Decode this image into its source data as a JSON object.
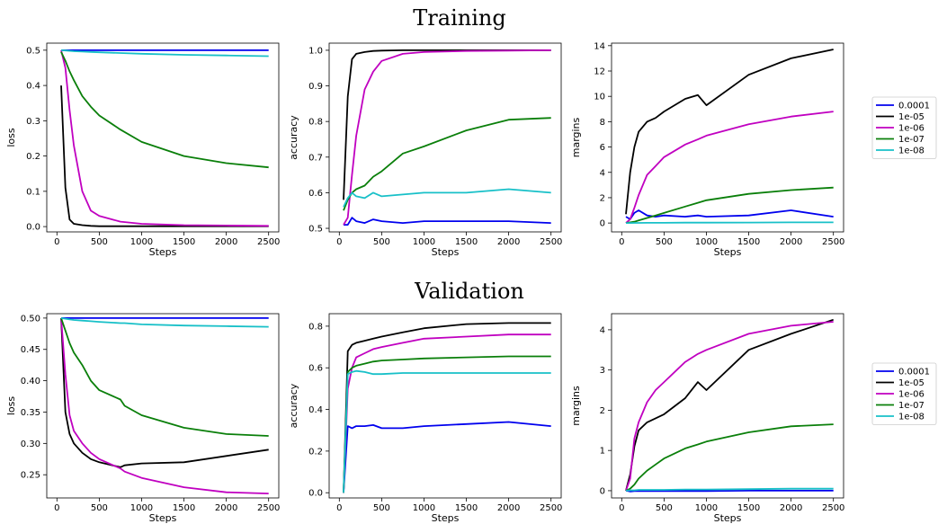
{
  "sections": [
    {
      "title": "Training"
    },
    {
      "title": "Validation"
    }
  ],
  "legend": {
    "entries": [
      {
        "label": "0.0001",
        "color": "#0000ee"
      },
      {
        "label": "1e-05",
        "color": "#000000"
      },
      {
        "label": "1e-06",
        "color": "#c000c0"
      },
      {
        "label": "1e-07",
        "color": "#0a7f0a"
      },
      {
        "label": "1e-08",
        "color": "#18c0c8"
      }
    ]
  },
  "chart_data": [
    {
      "type": "line",
      "section": "Training",
      "xlabel": "Steps",
      "ylabel": "loss",
      "xlim": [
        -120,
        2620
      ],
      "ylim": [
        -0.015,
        0.52
      ],
      "xticks": [
        0,
        500,
        1000,
        1500,
        2000,
        2500
      ],
      "yticks": [
        0.0,
        0.1,
        0.2,
        0.3,
        0.4,
        0.5
      ],
      "yticklabels": [
        "0.0",
        "0.1",
        "0.2",
        "0.3",
        "0.4",
        "0.5"
      ],
      "x": [
        50,
        100,
        150,
        200,
        300,
        400,
        500,
        750,
        1000,
        1500,
        2000,
        2500
      ],
      "series": [
        {
          "name": "0.0001",
          "values": [
            0.5,
            0.5,
            0.5,
            0.5,
            0.5,
            0.5,
            0.5,
            0.5,
            0.5,
            0.5,
            0.5,
            0.5
          ]
        },
        {
          "name": "1e-05",
          "values": [
            0.4,
            0.11,
            0.02,
            0.008,
            0.004,
            0.002,
            0.001,
            0.001,
            0.001,
            0.001,
            0.001,
            0.001
          ]
        },
        {
          "name": "1e-06",
          "values": [
            0.5,
            0.45,
            0.33,
            0.23,
            0.1,
            0.045,
            0.03,
            0.014,
            0.008,
            0.004,
            0.003,
            0.002
          ]
        },
        {
          "name": "1e-07",
          "values": [
            0.495,
            0.47,
            0.44,
            0.415,
            0.37,
            0.34,
            0.315,
            0.275,
            0.24,
            0.2,
            0.18,
            0.168
          ]
        },
        {
          "name": "1e-08",
          "values": [
            0.5,
            0.499,
            0.498,
            0.497,
            0.496,
            0.495,
            0.494,
            0.492,
            0.49,
            0.487,
            0.485,
            0.483
          ]
        }
      ]
    },
    {
      "type": "line",
      "section": "Training",
      "xlabel": "Steps",
      "ylabel": "accuracy",
      "xlim": [
        -120,
        2620
      ],
      "ylim": [
        0.49,
        1.02
      ],
      "xticks": [
        0,
        500,
        1000,
        1500,
        2000,
        2500
      ],
      "yticks": [
        0.5,
        0.6,
        0.7,
        0.8,
        0.9,
        1.0
      ],
      "yticklabels": [
        "0.5",
        "0.6",
        "0.7",
        "0.8",
        "0.9",
        "1.0"
      ],
      "x": [
        50,
        100,
        150,
        200,
        300,
        400,
        500,
        750,
        1000,
        1500,
        2000,
        2500
      ],
      "series": [
        {
          "name": "0.0001",
          "values": [
            0.51,
            0.51,
            0.53,
            0.52,
            0.515,
            0.525,
            0.52,
            0.515,
            0.52,
            0.52,
            0.52,
            0.515
          ]
        },
        {
          "name": "1e-05",
          "values": [
            0.58,
            0.87,
            0.975,
            0.99,
            0.995,
            0.998,
            0.999,
            1.0,
            1.0,
            1.0,
            1.0,
            1.0
          ]
        },
        {
          "name": "1e-06",
          "values": [
            0.51,
            0.53,
            0.65,
            0.76,
            0.89,
            0.94,
            0.97,
            0.99,
            0.995,
            0.998,
            0.999,
            1.0
          ]
        },
        {
          "name": "1e-07",
          "values": [
            0.55,
            0.58,
            0.6,
            0.61,
            0.62,
            0.645,
            0.66,
            0.71,
            0.73,
            0.775,
            0.805,
            0.81
          ]
        },
        {
          "name": "1e-08",
          "values": [
            0.56,
            0.585,
            0.6,
            0.59,
            0.585,
            0.6,
            0.59,
            0.595,
            0.6,
            0.6,
            0.61,
            0.6
          ]
        }
      ]
    },
    {
      "type": "line",
      "section": "Training",
      "xlabel": "Steps",
      "ylabel": "margins",
      "xlim": [
        -120,
        2620
      ],
      "ylim": [
        -0.7,
        14.2
      ],
      "xticks": [
        0,
        500,
        1000,
        1500,
        2000,
        2500
      ],
      "yticks": [
        0,
        2,
        4,
        6,
        8,
        10,
        12,
        14
      ],
      "yticklabels": [
        "0",
        "2",
        "4",
        "6",
        "8",
        "10",
        "12",
        "14"
      ],
      "x": [
        50,
        100,
        150,
        200,
        300,
        400,
        500,
        750,
        900,
        1000,
        1500,
        2000,
        2500
      ],
      "series": [
        {
          "name": "0.0001",
          "values": [
            0.5,
            0.3,
            0.8,
            1.0,
            0.6,
            0.5,
            0.6,
            0.5,
            0.6,
            0.5,
            0.6,
            1.0,
            0.5
          ]
        },
        {
          "name": "1e-05",
          "values": [
            0.7,
            4.0,
            6.0,
            7.2,
            8.0,
            8.3,
            8.8,
            9.8,
            10.1,
            9.3,
            11.7,
            13.0,
            13.7
          ]
        },
        {
          "name": "1e-06",
          "values": [
            0.0,
            0.3,
            1.2,
            2.2,
            3.8,
            4.5,
            5.2,
            6.2,
            6.6,
            6.9,
            7.8,
            8.4,
            8.8
          ]
        },
        {
          "name": "1e-07",
          "values": [
            0.0,
            0.05,
            0.1,
            0.2,
            0.4,
            0.6,
            0.8,
            1.3,
            1.6,
            1.8,
            2.3,
            2.6,
            2.8
          ]
        },
        {
          "name": "1e-08",
          "values": [
            0.0,
            0.0,
            0.01,
            0.01,
            0.02,
            0.02,
            0.02,
            0.03,
            0.03,
            0.03,
            0.04,
            0.05,
            0.05
          ]
        }
      ]
    },
    {
      "type": "line",
      "section": "Validation",
      "xlabel": "Steps",
      "ylabel": "loss",
      "xlim": [
        -120,
        2620
      ],
      "ylim": [
        0.213,
        0.507
      ],
      "xticks": [
        0,
        500,
        1000,
        1500,
        2000,
        2500
      ],
      "yticks": [
        0.25,
        0.3,
        0.35,
        0.4,
        0.45,
        0.5
      ],
      "yticklabels": [
        "0.25",
        "0.30",
        "0.35",
        "0.40",
        "0.45",
        "0.50"
      ],
      "x": [
        50,
        100,
        150,
        200,
        300,
        400,
        500,
        750,
        800,
        1000,
        1500,
        2000,
        2500
      ],
      "series": [
        {
          "name": "0.0001",
          "values": [
            0.5,
            0.5,
            0.5,
            0.5,
            0.5,
            0.5,
            0.5,
            0.5,
            0.5,
            0.5,
            0.5,
            0.5,
            0.5
          ]
        },
        {
          "name": "1e-05",
          "values": [
            0.5,
            0.35,
            0.315,
            0.3,
            0.285,
            0.275,
            0.27,
            0.262,
            0.265,
            0.268,
            0.27,
            0.28,
            0.29
          ]
        },
        {
          "name": "1e-06",
          "values": [
            0.5,
            0.41,
            0.345,
            0.32,
            0.3,
            0.285,
            0.275,
            0.26,
            0.255,
            0.245,
            0.23,
            0.222,
            0.22
          ]
        },
        {
          "name": "1e-07",
          "values": [
            0.5,
            0.48,
            0.46,
            0.445,
            0.425,
            0.4,
            0.385,
            0.37,
            0.36,
            0.345,
            0.325,
            0.315,
            0.312
          ]
        },
        {
          "name": "1e-08",
          "values": [
            0.5,
            0.499,
            0.498,
            0.497,
            0.496,
            0.495,
            0.494,
            0.492,
            0.492,
            0.49,
            0.488,
            0.487,
            0.486
          ]
        }
      ]
    },
    {
      "type": "line",
      "section": "Validation",
      "xlabel": "Steps",
      "ylabel": "accuracy",
      "xlim": [
        -120,
        2620
      ],
      "ylim": [
        -0.025,
        0.86
      ],
      "xticks": [
        0,
        500,
        1000,
        1500,
        2000,
        2500
      ],
      "yticks": [
        0.0,
        0.2,
        0.4,
        0.6,
        0.8
      ],
      "yticklabels": [
        "0.0",
        "0.2",
        "0.4",
        "0.6",
        "0.8"
      ],
      "x": [
        50,
        100,
        150,
        200,
        300,
        400,
        500,
        750,
        1000,
        1500,
        2000,
        2500
      ],
      "series": [
        {
          "name": "0.0001",
          "values": [
            0.0,
            0.32,
            0.31,
            0.32,
            0.32,
            0.325,
            0.31,
            0.31,
            0.32,
            0.33,
            0.34,
            0.32
          ]
        },
        {
          "name": "1e-05",
          "values": [
            0.0,
            0.68,
            0.71,
            0.72,
            0.73,
            0.74,
            0.75,
            0.77,
            0.79,
            0.81,
            0.815,
            0.815
          ]
        },
        {
          "name": "1e-06",
          "values": [
            0.0,
            0.5,
            0.6,
            0.65,
            0.67,
            0.69,
            0.7,
            0.72,
            0.74,
            0.75,
            0.76,
            0.76
          ]
        },
        {
          "name": "1e-07",
          "values": [
            0.0,
            0.58,
            0.6,
            0.61,
            0.62,
            0.63,
            0.635,
            0.64,
            0.645,
            0.65,
            0.655,
            0.655
          ]
        },
        {
          "name": "1e-08",
          "values": [
            0.0,
            0.57,
            0.58,
            0.585,
            0.58,
            0.57,
            0.57,
            0.575,
            0.575,
            0.575,
            0.575,
            0.575
          ]
        }
      ]
    },
    {
      "type": "line",
      "section": "Validation",
      "xlabel": "Steps",
      "ylabel": "margins",
      "xlim": [
        -120,
        2620
      ],
      "ylim": [
        -0.18,
        4.4
      ],
      "xticks": [
        0,
        500,
        1000,
        1500,
        2000,
        2500
      ],
      "yticks": [
        0,
        1,
        2,
        3,
        4
      ],
      "yticklabels": [
        "0",
        "1",
        "2",
        "3",
        "4"
      ],
      "x": [
        50,
        100,
        150,
        200,
        300,
        400,
        500,
        750,
        900,
        1000,
        1500,
        2000,
        2500
      ],
      "series": [
        {
          "name": "0.0001",
          "values": [
            0.0,
            -0.02,
            -0.01,
            -0.01,
            -0.01,
            -0.01,
            -0.01,
            -0.01,
            -0.01,
            -0.01,
            0.0,
            0.0,
            0.0
          ]
        },
        {
          "name": "1e-05",
          "values": [
            0.0,
            0.4,
            1.1,
            1.5,
            1.7,
            1.8,
            1.9,
            2.3,
            2.7,
            2.5,
            3.5,
            3.9,
            4.25
          ]
        },
        {
          "name": "1e-06",
          "values": [
            0.0,
            0.3,
            1.3,
            1.7,
            2.2,
            2.5,
            2.7,
            3.2,
            3.4,
            3.5,
            3.9,
            4.1,
            4.2
          ]
        },
        {
          "name": "1e-07",
          "values": [
            0.0,
            0.05,
            0.15,
            0.3,
            0.5,
            0.65,
            0.8,
            1.05,
            1.15,
            1.22,
            1.45,
            1.6,
            1.65
          ]
        },
        {
          "name": "1e-08",
          "values": [
            0.0,
            0.01,
            0.01,
            0.02,
            0.02,
            0.02,
            0.02,
            0.03,
            0.03,
            0.03,
            0.04,
            0.05,
            0.05
          ]
        }
      ]
    }
  ]
}
